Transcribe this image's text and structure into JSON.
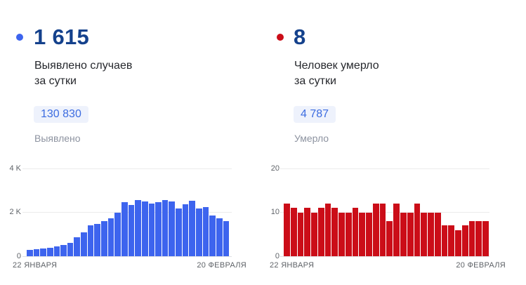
{
  "colors": {
    "cases_accent": "#3d64ee",
    "deaths_accent": "#cb0d18",
    "headline_navy": "#14418c",
    "badge_bg": "#eef2fc",
    "badge_text": "#3c6ce0",
    "muted_text": "#8d93a0",
    "axis_text": "#5f6368"
  },
  "panels": [
    {
      "id": "cases",
      "headline": "1 615",
      "subtitle": "Выявлено случаев\nза сутки",
      "total_badge": "130 830",
      "total_label": "Выявлено"
    },
    {
      "id": "deaths",
      "headline": "8",
      "subtitle": "Человек умерло\nза сутки",
      "total_badge": "4 787",
      "total_label": "Умерло"
    }
  ],
  "chart_data": [
    {
      "type": "bar",
      "title": "Выявлено случаев за сутки",
      "bar_color": "#3d64ee",
      "x_start_label": "22 ЯНВАРЯ",
      "x_end_label": "20 ФЕВРАЛЯ",
      "y_ticks": [
        "0",
        "2 K",
        "4 K"
      ],
      "ylim": [
        0,
        4000
      ],
      "grid": true,
      "values": [
        280,
        320,
        360,
        400,
        440,
        510,
        600,
        850,
        1080,
        1400,
        1470,
        1600,
        1720,
        2000,
        2450,
        2350,
        2570,
        2510,
        2390,
        2450,
        2570,
        2500,
        2190,
        2360,
        2540,
        2190,
        2230,
        1870,
        1720,
        1615
      ]
    },
    {
      "type": "bar",
      "title": "Человек умерло за сутки",
      "bar_color": "#cb0d18",
      "x_start_label": "22 ЯНВАРЯ",
      "x_end_label": "20 ФЕВРАЛЯ",
      "y_ticks": [
        "0",
        "10",
        "20"
      ],
      "ylim": [
        0,
        20
      ],
      "grid": true,
      "values": [
        12,
        11,
        10,
        11,
        10,
        11,
        12,
        11,
        10,
        10,
        11,
        10,
        10,
        12,
        12,
        8,
        12,
        10,
        10,
        12,
        10,
        10,
        10,
        7,
        7,
        6,
        7,
        8,
        8,
        8
      ]
    }
  ]
}
